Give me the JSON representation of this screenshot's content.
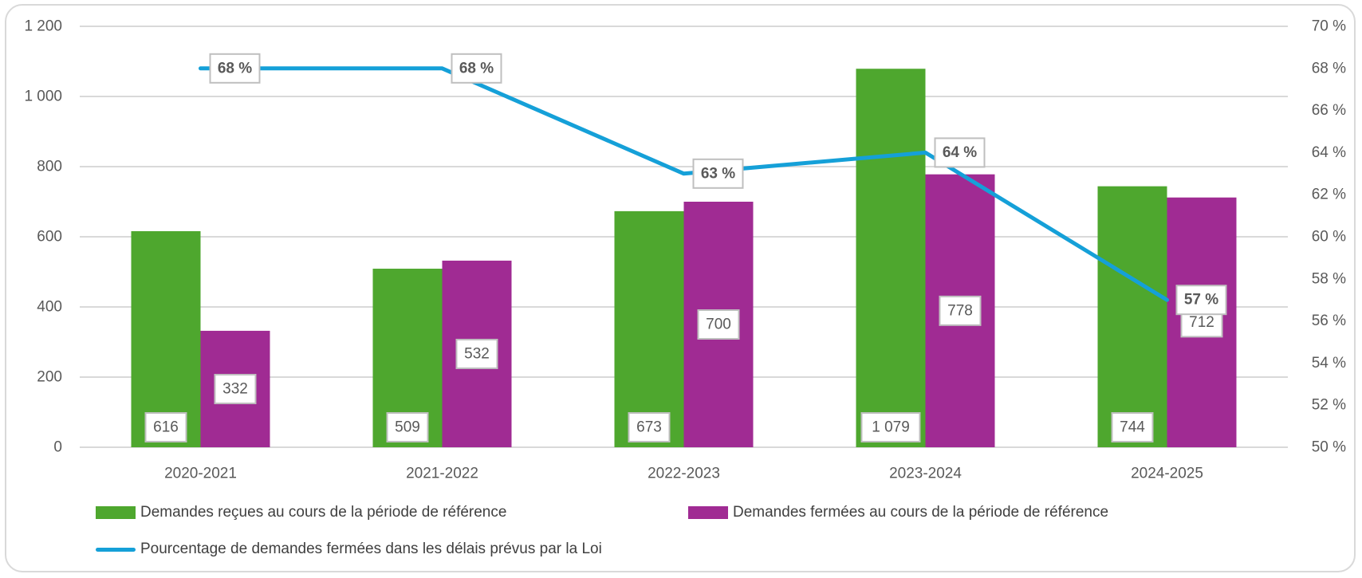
{
  "chart_data": {
    "type": "bar",
    "categories": [
      "2020-2021",
      "2021-2022",
      "2022-2023",
      "2023-2024",
      "2024-2025"
    ],
    "series": [
      {
        "name": "Demandes reçues au cours de la période de référence",
        "type": "bar",
        "axis": "left",
        "color": "#4ea72e",
        "values": [
          616,
          509,
          673,
          1079,
          744
        ],
        "labels": [
          "616",
          "509",
          "673",
          "1 079",
          "744"
        ]
      },
      {
        "name": "Demandes fermées au cours de la période de référence",
        "type": "bar",
        "axis": "left",
        "color": "#a02b93",
        "values": [
          332,
          532,
          700,
          778,
          712
        ],
        "labels": [
          "332",
          "532",
          "700",
          "778",
          "712"
        ]
      },
      {
        "name": "Pourcentage de demandes fermées dans les délais prévus par la Loi",
        "type": "line",
        "axis": "right",
        "color": "#15a0d8",
        "values": [
          68,
          68,
          63,
          64,
          57
        ],
        "labels": [
          "68 %",
          "68 %",
          "63 %",
          "64 %",
          "57 %"
        ]
      }
    ],
    "left_axis": {
      "range": [
        0,
        1200
      ],
      "ticks": [
        "0",
        "200",
        "400",
        "600",
        "800",
        "1 000",
        "1 200"
      ]
    },
    "right_axis": {
      "range": [
        50,
        70
      ],
      "ticks": [
        "50 %",
        "52 %",
        "54 %",
        "56 %",
        "58 %",
        "60 %",
        "62 %",
        "64 %",
        "66 %",
        "68 %",
        "70 %"
      ]
    },
    "grid": true,
    "legend": "bottom"
  }
}
